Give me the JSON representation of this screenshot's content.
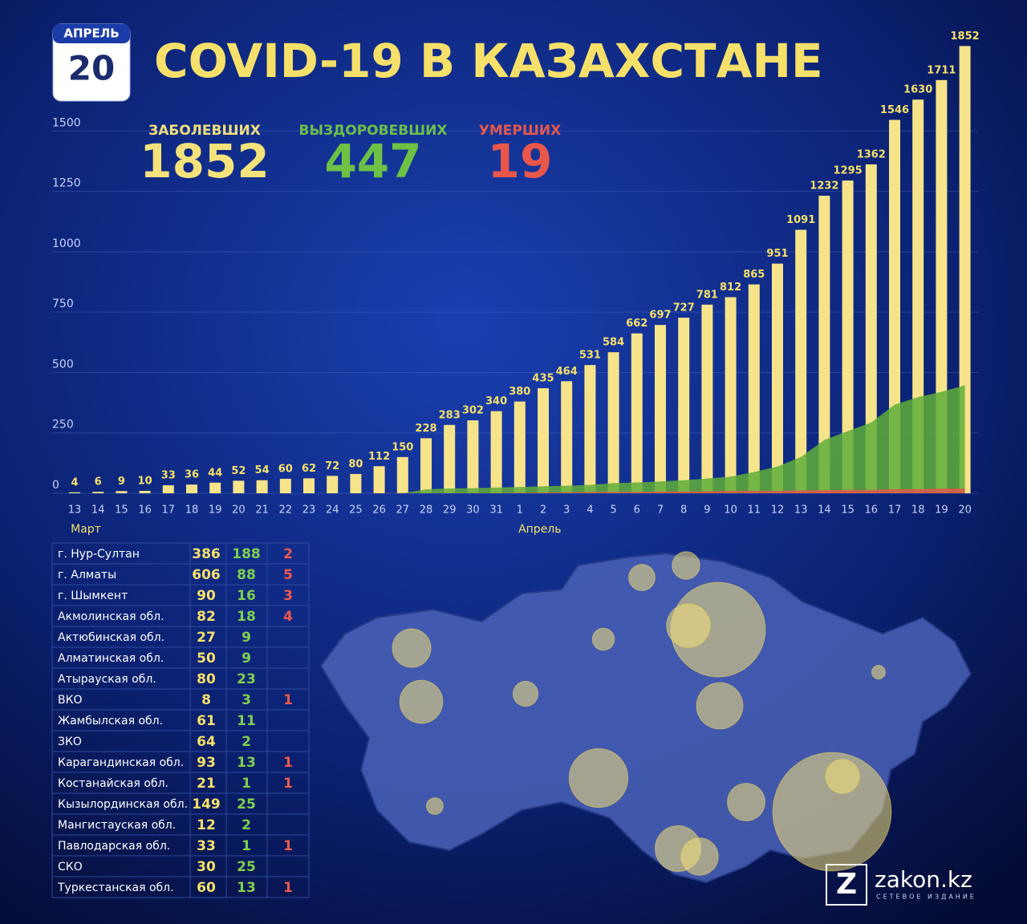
{
  "header": {
    "calendar_month": "АПРЕЛЬ",
    "calendar_day": "20",
    "title": "COVID-19 В КАЗАХСТАНЕ"
  },
  "stats": [
    {
      "label": "ЗАБОЛЕВШИХ",
      "value": "1852",
      "color": "#f5e27a"
    },
    {
      "label": "ВЫЗДОРОВЕВШИХ",
      "value": "447",
      "color": "#6dc245"
    },
    {
      "label": "УМЕРШИХ",
      "value": "19",
      "color": "#e9574a"
    }
  ],
  "chart_data": {
    "type": "bar",
    "categories": [
      "13",
      "14",
      "15",
      "16",
      "17",
      "18",
      "19",
      "20",
      "21",
      "22",
      "23",
      "24",
      "25",
      "26",
      "27",
      "28",
      "29",
      "30",
      "31",
      "1",
      "2",
      "3",
      "4",
      "5",
      "6",
      "7",
      "8",
      "9",
      "10",
      "11",
      "12",
      "13",
      "14",
      "15",
      "16",
      "17",
      "18",
      "19",
      "20"
    ],
    "month_labels": [
      "Март",
      "Апрель"
    ],
    "series": [
      {
        "color": "#f7e48a",
        "values": [
          4,
          6,
          9,
          10,
          33,
          36,
          44,
          52,
          54,
          60,
          62,
          72,
          80,
          112,
          150,
          228,
          283,
          302,
          340,
          380,
          435,
          464,
          531,
          584,
          662,
          697,
          727,
          781,
          812,
          865,
          951,
          1091,
          1232,
          1295,
          1362,
          1546,
          1630,
          1711,
          1852
        ]
      },
      {
        "color": "#5fae3a",
        "values": [
          0,
          0,
          0,
          0,
          0,
          0,
          0,
          0,
          0,
          0,
          0,
          0,
          0,
          0,
          0,
          16,
          20,
          21,
          24,
          26,
          29,
          31,
          35,
          42,
          45,
          49,
          54,
          61,
          69,
          88,
          111,
          150,
          221,
          257,
          293,
          367,
          398,
          420,
          447
        ]
      },
      {
        "color": "#e2574a",
        "values": [
          0,
          0,
          0,
          0,
          0,
          0,
          0,
          0,
          0,
          0,
          0,
          0,
          0,
          1,
          1,
          1,
          1,
          1,
          1,
          2,
          3,
          4,
          5,
          6,
          6,
          7,
          7,
          8,
          10,
          10,
          10,
          12,
          13,
          14,
          14,
          17,
          17,
          19,
          19
        ]
      }
    ],
    "ylim": [
      0,
      1820
    ],
    "yticks": [
      0,
      250,
      500,
      750,
      1000,
      1250,
      1500
    ],
    "grid": true
  },
  "table": {
    "rows": [
      [
        "г. Нур-Султан",
        386,
        188,
        2
      ],
      [
        "г. Алматы",
        606,
        88,
        5
      ],
      [
        "г. Шымкент",
        90,
        16,
        3
      ],
      [
        "Акмолинская обл.",
        82,
        18,
        4
      ],
      [
        "Актюбинская обл.",
        27,
        9,
        null
      ],
      [
        "Алматинская обл.",
        50,
        9,
        null
      ],
      [
        "Атырауская обл.",
        80,
        23,
        null
      ],
      [
        "ВКО",
        8,
        3,
        1
      ],
      [
        "Жамбылская обл.",
        61,
        11,
        null
      ],
      [
        "ЗКО",
        64,
        2,
        null
      ],
      [
        "Карагандинская обл.",
        93,
        13,
        1
      ],
      [
        "Костанайская обл.",
        21,
        1,
        1
      ],
      [
        "Кызылординская обл.",
        149,
        25,
        null
      ],
      [
        "Мангистауская обл.",
        12,
        2,
        null
      ],
      [
        "Павлодарская обл.",
        33,
        1,
        1
      ],
      [
        "СКО",
        30,
        25,
        null
      ],
      [
        "Туркестанская обл.",
        60,
        13,
        1
      ]
    ]
  },
  "logo": {
    "name": "zakon.kz",
    "tagline": "СЕТЕВОЕ ИЗДАНИЕ"
  }
}
